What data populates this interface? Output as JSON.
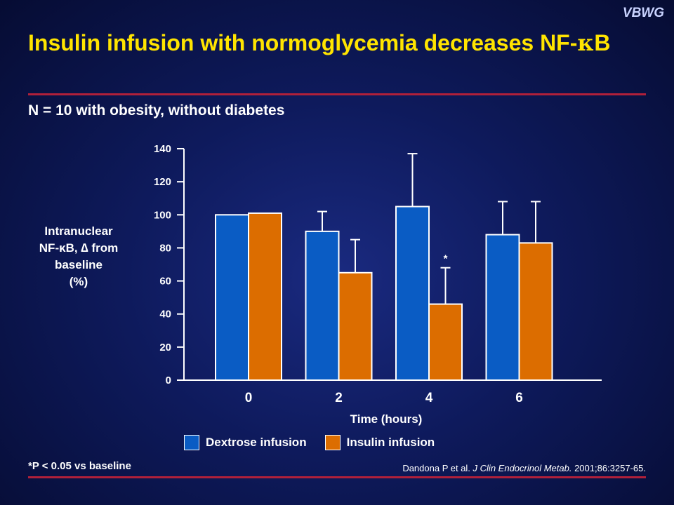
{
  "brand": "VBWG",
  "title_main": "Insulin infusion with normoglycemia decreases NF-",
  "title_kappa": "κ",
  "title_end": "B",
  "subtitle": "N = 10 with obesity, without diabetes",
  "ylabel": [
    "Intranuclear",
    "NF-κB, ∆ from",
    "baseline",
    "(%)"
  ],
  "footnote": "*P < 0.05 vs baseline",
  "citation": {
    "authors": "Dandona P et al. ",
    "journal": "J Clin Endocrinol Metab.",
    "details": " 2001;86:3257-65."
  },
  "colors": {
    "dextrose": "#0a5cc4",
    "insulin": "#dc6d00",
    "title": "#ffe400",
    "rule": "#b0203a"
  },
  "chart_data": {
    "type": "bar",
    "xlabel": "Time (hours)",
    "ylabel": "Intranuclear NF-κB, ∆ from baseline (%)",
    "categories": [
      "0",
      "2",
      "4",
      "6"
    ],
    "ylim": [
      0,
      140
    ],
    "yticks": [
      0,
      20,
      40,
      60,
      80,
      100,
      120,
      140
    ],
    "series": [
      {
        "name": "Dextrose infusion",
        "color": "#0a5cc4",
        "values": [
          100,
          90,
          105,
          88
        ],
        "error_upper": [
          100,
          102,
          137,
          108
        ]
      },
      {
        "name": "Insulin infusion",
        "color": "#dc6d00",
        "values": [
          101,
          65,
          46,
          83
        ],
        "error_upper": [
          101,
          85,
          68,
          108
        ]
      }
    ],
    "annotations": [
      {
        "text": "*",
        "series": 1,
        "category": 2
      }
    ]
  }
}
